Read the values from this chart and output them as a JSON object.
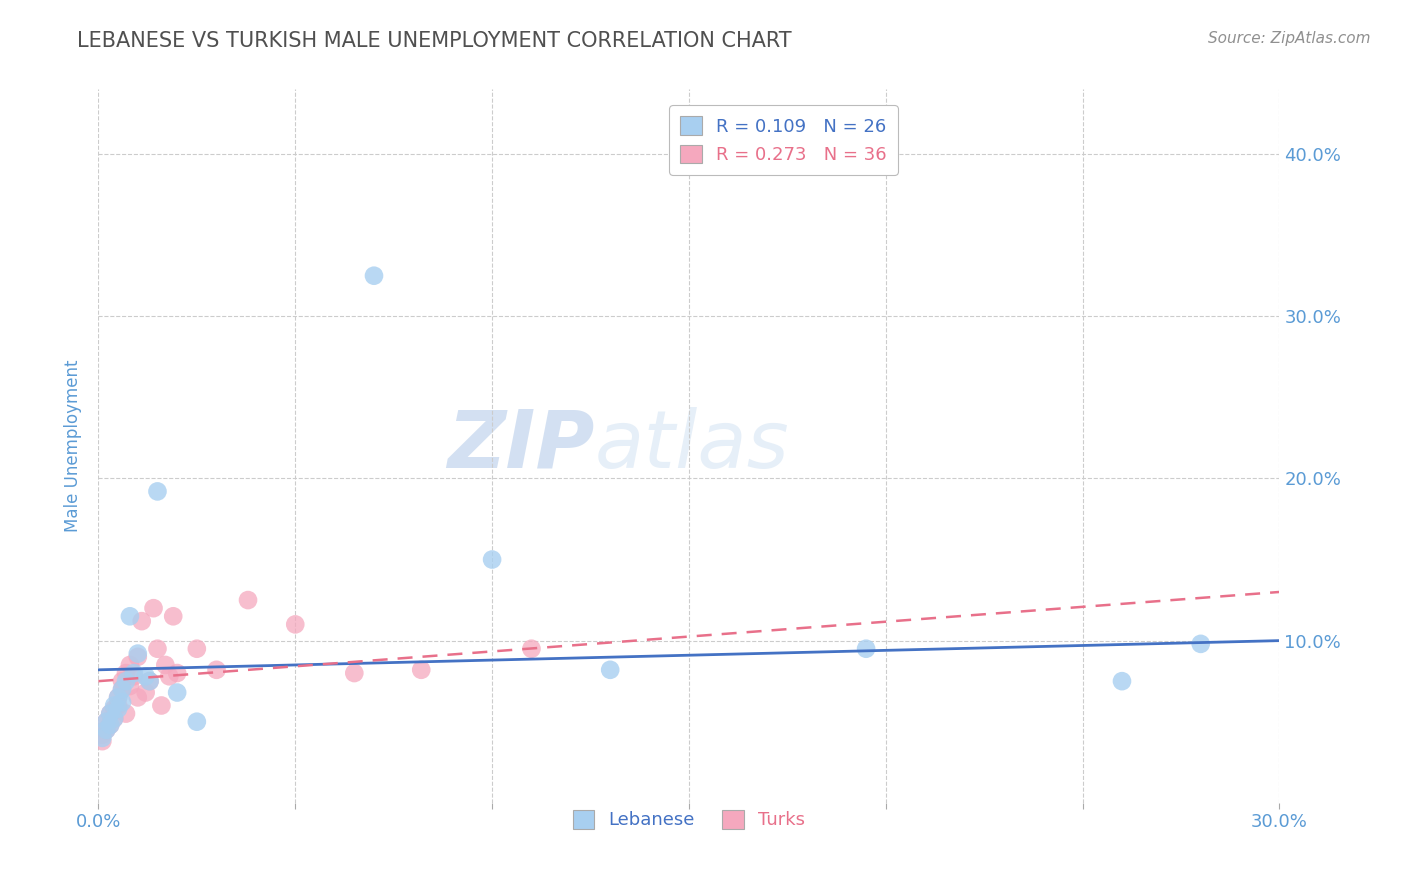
{
  "title": "LEBANESE VS TURKISH MALE UNEMPLOYMENT CORRELATION CHART",
  "source": "Source: ZipAtlas.com",
  "xlim": [
    0.0,
    0.3
  ],
  "ylim": [
    0.0,
    0.44
  ],
  "watermark_zip": "ZIP",
  "watermark_atlas": "atlas",
  "legend_label1": "R = 0.109   N = 26",
  "legend_label2": "R = 0.273   N = 36",
  "lebanese_x": [
    0.001,
    0.002,
    0.002,
    0.003,
    0.003,
    0.004,
    0.004,
    0.005,
    0.005,
    0.006,
    0.006,
    0.007,
    0.008,
    0.009,
    0.01,
    0.012,
    0.013,
    0.015,
    0.02,
    0.025,
    0.07,
    0.1,
    0.13,
    0.195,
    0.26,
    0.28
  ],
  "lebanese_y": [
    0.04,
    0.05,
    0.045,
    0.055,
    0.048,
    0.052,
    0.06,
    0.058,
    0.065,
    0.062,
    0.07,
    0.075,
    0.115,
    0.08,
    0.092,
    0.078,
    0.075,
    0.192,
    0.068,
    0.05,
    0.325,
    0.15,
    0.082,
    0.095,
    0.075,
    0.098
  ],
  "turks_x": [
    0.001,
    0.001,
    0.002,
    0.002,
    0.003,
    0.003,
    0.004,
    0.004,
    0.005,
    0.005,
    0.006,
    0.006,
    0.007,
    0.007,
    0.008,
    0.008,
    0.009,
    0.01,
    0.01,
    0.011,
    0.012,
    0.013,
    0.014,
    0.015,
    0.016,
    0.017,
    0.018,
    0.019,
    0.02,
    0.025,
    0.03,
    0.038,
    0.05,
    0.065,
    0.082,
    0.11
  ],
  "turks_y": [
    0.038,
    0.042,
    0.045,
    0.05,
    0.048,
    0.055,
    0.052,
    0.058,
    0.06,
    0.065,
    0.07,
    0.075,
    0.055,
    0.08,
    0.072,
    0.085,
    0.078,
    0.09,
    0.065,
    0.112,
    0.068,
    0.075,
    0.12,
    0.095,
    0.06,
    0.085,
    0.078,
    0.115,
    0.08,
    0.095,
    0.082,
    0.125,
    0.11,
    0.08,
    0.082,
    0.095
  ],
  "lebanese_color": "#A8CFF0",
  "turks_color": "#F5A8BE",
  "lebanese_line_color": "#4472C4",
  "turks_line_color": "#E8708A",
  "background_color": "#FFFFFF",
  "grid_color": "#CCCCCC",
  "title_color": "#505050",
  "axis_tick_color": "#5B9BD5",
  "ylabel_color": "#5B9BD5",
  "source_color": "#909090",
  "legend_border_color": "#BBBBBB"
}
